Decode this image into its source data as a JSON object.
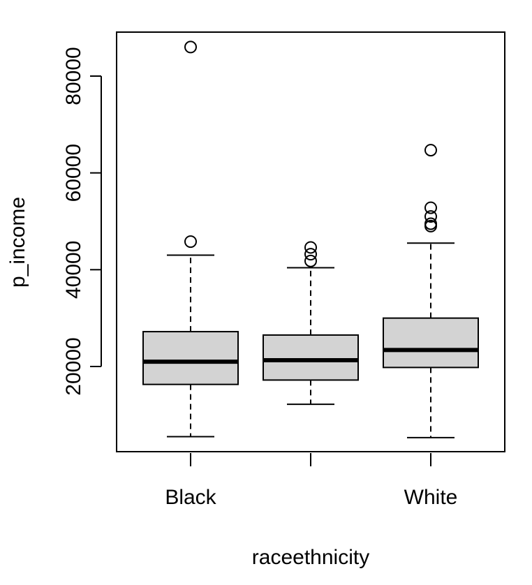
{
  "chart_data": {
    "type": "boxplot",
    "title": "",
    "xlabel": "raceethnicity",
    "ylabel": "p_income",
    "ylim": [
      3000,
      90000
    ],
    "yticks": [
      20000,
      40000,
      60000,
      80000
    ],
    "ytick_labels": [
      "20000",
      "40000",
      "60000",
      "80000"
    ],
    "categories": [
      "Black",
      "",
      "White"
    ],
    "x_tick_labels_shown": [
      "Black",
      "",
      "White"
    ],
    "boxes": [
      {
        "category": "Black",
        "whisker_low": 5500,
        "q1": 16300,
        "median": 21000,
        "q3": 27200,
        "whisker_high": 43000,
        "outliers": [
          45800,
          86000
        ]
      },
      {
        "category": "",
        "whisker_low": 12200,
        "q1": 17200,
        "median": 21300,
        "q3": 26500,
        "whisker_high": 40400,
        "outliers": [
          41800,
          43200,
          44600
        ]
      },
      {
        "category": "White",
        "whisker_low": 5300,
        "q1": 19800,
        "median": 23400,
        "q3": 30000,
        "whisker_high": 45500,
        "outliers": [
          49000,
          49500,
          51000,
          52800,
          64700
        ]
      }
    ],
    "box_fill": "#d3d3d3",
    "line_color": "#000000",
    "grid": false,
    "legend": "none"
  }
}
